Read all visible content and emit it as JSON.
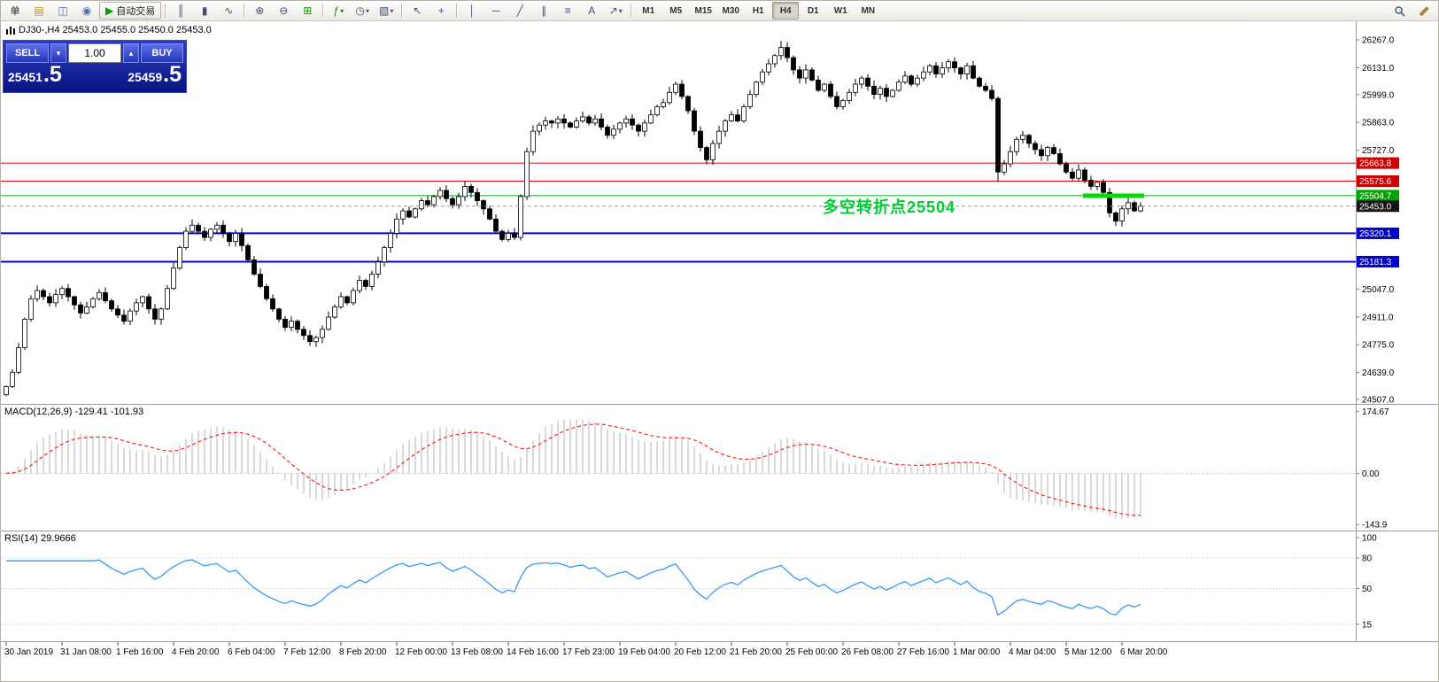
{
  "toolbar": {
    "buttons": [
      {
        "type": "btn",
        "name": "new-order-button",
        "label": "单"
      },
      {
        "type": "btn",
        "name": "chart-window-icon",
        "glyph": "▤",
        "color": "#c09030"
      },
      {
        "type": "btn",
        "name": "market-watch-icon",
        "glyph": "◫",
        "color": "#4a6fb0"
      },
      {
        "type": "btn",
        "name": "info-icon",
        "glyph": "◉",
        "color": "#4a6fb0"
      },
      {
        "type": "auto",
        "name": "autotrading-button",
        "label": "自动交易",
        "glyph": "▶",
        "color": "#00A000"
      },
      {
        "type": "sep"
      },
      {
        "type": "btn",
        "name": "bar-chart-icon",
        "glyph": "║"
      },
      {
        "type": "btn",
        "name": "candlestick-chart-icon",
        "glyph": "▮"
      },
      {
        "type": "btn",
        "name": "line-chart-icon",
        "glyph": "∿"
      },
      {
        "type": "sep"
      },
      {
        "type": "btn",
        "name": "zoom-in-icon",
        "glyph": "⊕"
      },
      {
        "type": "btn",
        "name": "zoom-out-icon",
        "glyph": "⊖"
      },
      {
        "type": "btn",
        "name": "tile-windows-icon",
        "glyph": "⊞",
        "color": "#00A000"
      },
      {
        "type": "sep"
      },
      {
        "type": "btn",
        "name": "indicators-icon",
        "glyph": "ƒ",
        "color": "#00A000",
        "caret": true
      },
      {
        "type": "btn",
        "name": "periods-icon",
        "glyph": "◷",
        "caret": true
      },
      {
        "type": "btn",
        "name": "templates-icon",
        "glyph": "▧",
        "caret": true
      },
      {
        "type": "sep"
      },
      {
        "type": "btn",
        "name": "cursor-icon",
        "glyph": "↖"
      },
      {
        "type": "btn",
        "name": "crosshair-icon",
        "glyph": "+"
      },
      {
        "type": "sep"
      },
      {
        "type": "btn",
        "name": "vertical-line-icon",
        "glyph": "│"
      },
      {
        "type": "btn",
        "name": "horizontal-line-icon",
        "glyph": "─"
      },
      {
        "type": "btn",
        "name": "trendline-icon",
        "glyph": "╱"
      },
      {
        "type": "btn",
        "name": "channel-icon",
        "glyph": "∥"
      },
      {
        "type": "btn",
        "name": "fibonacci-icon",
        "glyph": "≡"
      },
      {
        "type": "btn",
        "name": "text-icon",
        "glyph": "A"
      },
      {
        "type": "btn",
        "name": "arrows-icon",
        "glyph": "↗",
        "caret": true
      },
      {
        "type": "sep"
      }
    ],
    "timeframes": [
      "M1",
      "M5",
      "M15",
      "M30",
      "H1",
      "H4",
      "D1",
      "W1",
      "MN"
    ],
    "active_timeframe": "H4"
  },
  "chart": {
    "title": "DJ30-,H4 25453.0 25455.0 25450.0 25453.0",
    "symbol": "DJ30-",
    "period": "H4",
    "annotation": {
      "text": "多空转折点25504",
      "color": "#00CC33"
    },
    "price_axis": {
      "values": [
        26267.0,
        26131.0,
        25999.0,
        25863.0,
        25727.0,
        25047.0,
        24911.0,
        24775.0,
        24639.0,
        24507.0
      ],
      "badges": [
        {
          "text": "25663.8",
          "price": 25663.8,
          "bg": "#CC0000"
        },
        {
          "text": "25575.6",
          "price": 25575.6,
          "bg": "#CC0000"
        },
        {
          "text": "25504.7",
          "price": 25504.7,
          "bg": "#00A400"
        },
        {
          "text": "25453.0",
          "price": 25453.0,
          "bg": "#141414"
        },
        {
          "text": "25320.1",
          "price": 25320.1,
          "bg": "#0000CC"
        },
        {
          "text": "25181.3",
          "price": 25181.3,
          "bg": "#0000CC"
        }
      ]
    },
    "time_axis": [
      "30 Jan 2019",
      "31 Jan 08:00",
      "1 Feb 16:00",
      "4 Feb 20:00",
      "6 Feb 04:00",
      "7 Feb 12:00",
      "8 Feb 20:00",
      "12 Feb 00:00",
      "13 Feb 08:00",
      "14 Feb 16:00",
      "17 Feb 23:00",
      "19 Feb 04:00",
      "20 Feb 12:00",
      "21 Feb 20:00",
      "25 Feb 00:00",
      "26 Feb 08:00",
      "27 Feb 16:00",
      "1 Mar 00:00",
      "4 Mar 04:00",
      "5 Mar 12:00",
      "6 Mar 20:00"
    ]
  },
  "trade_panel": {
    "sell_label": "SELL",
    "buy_label": "BUY",
    "volume": "1.00",
    "caret_down": "▾",
    "caret_up": "▴",
    "sell_price_main": "25451",
    "sell_price_frac": ".5",
    "buy_price_main": "25459",
    "buy_price_frac": ".5"
  },
  "indicators": {
    "macd": {
      "label": "MACD(12,26,9) -129.41 -101.93",
      "scale": [
        {
          "text": "174.67",
          "v": 174.67
        },
        {
          "text": "0.00",
          "v": 0
        },
        {
          "text": "-143.9",
          "v": -143.9
        }
      ]
    },
    "rsi": {
      "label": "RSI(14) 29.9666",
      "scale": [
        {
          "text": "100",
          "v": 100
        },
        {
          "text": "80",
          "v": 80
        },
        {
          "text": "50",
          "v": 50
        },
        {
          "text": "15",
          "v": 15
        }
      ]
    }
  },
  "chart_data": {
    "type": "candlestick",
    "symbol": "DJ30-",
    "timeframe": "H4",
    "x_range": [
      "30 Jan 2019",
      "7 Mar 2019"
    ],
    "ylim": [
      24507.0,
      26267.0
    ],
    "bid": 25453.0,
    "closes": [
      24570,
      24640,
      24760,
      24900,
      25000,
      25040,
      25010,
      24980,
      25020,
      25050,
      25010,
      24970,
      24930,
      24960,
      25000,
      25030,
      24990,
      24950,
      24920,
      24890,
      24940,
      24980,
      25010,
      24950,
      24900,
      24950,
      25050,
      25150,
      25250,
      25330,
      25360,
      25330,
      25300,
      25340,
      25360,
      25320,
      25280,
      25320,
      25260,
      25190,
      25120,
      25060,
      25000,
      24950,
      24900,
      24860,
      24890,
      24850,
      24820,
      24790,
      24810,
      24850,
      24910,
      24960,
      25010,
      24980,
      25040,
      25090,
      25060,
      25120,
      25180,
      25250,
      25320,
      25390,
      25430,
      25400,
      25440,
      25480,
      25460,
      25500,
      25530,
      25490,
      25460,
      25500,
      25550,
      25520,
      25480,
      25440,
      25390,
      25330,
      25290,
      25320,
      25300,
      25500,
      25720,
      25820,
      25850,
      25870,
      25860,
      25880,
      25860,
      25840,
      25870,
      25890,
      25860,
      25880,
      25840,
      25800,
      25830,
      25860,
      25880,
      25850,
      25820,
      25860,
      25900,
      25940,
      25960,
      26010,
      26050,
      25990,
      25920,
      25820,
      25740,
      25680,
      25760,
      25820,
      25870,
      25900,
      25870,
      25940,
      26000,
      26060,
      26110,
      26150,
      26190,
      26230,
      26180,
      26120,
      26080,
      26120,
      26070,
      26020,
      26050,
      25990,
      25940,
      25970,
      26010,
      26050,
      26080,
      26040,
      26000,
      26030,
      25990,
      26020,
      26060,
      26090,
      26050,
      26080,
      26110,
      26140,
      26100,
      26130,
      26160,
      26130,
      26100,
      26140,
      26080,
      26040,
      26020,
      25980,
      25620,
      25660,
      25720,
      25780,
      25800,
      25760,
      25730,
      25700,
      25740,
      25710,
      25660,
      25620,
      25590,
      25630,
      25580,
      25550,
      25570,
      25520,
      25420,
      25380,
      25440,
      25470,
      25430,
      25453
    ],
    "levels": [
      {
        "price": 25663.8,
        "color": "#E00000",
        "width": 1
      },
      {
        "price": 25575.6,
        "color": "#E00000",
        "width": 1
      },
      {
        "price": 25504.7,
        "color": "#00B400",
        "width": 1
      },
      {
        "price": 25320.1,
        "color": "#0000E0",
        "width": 2
      },
      {
        "price": 25181.3,
        "color": "#0000E0",
        "width": 2
      }
    ],
    "highlight_segment": {
      "price": 25504,
      "color": "#00DC00"
    },
    "indicators": [
      {
        "name": "MACD",
        "params": [
          12,
          26,
          9
        ],
        "current_values": [
          -129.41,
          -101.93
        ],
        "scale_range": [
          -143.9,
          174.67
        ]
      },
      {
        "name": "RSI",
        "params": [
          14
        ],
        "current_value": 29.9666,
        "scale_range": [
          0,
          100
        ]
      }
    ]
  }
}
